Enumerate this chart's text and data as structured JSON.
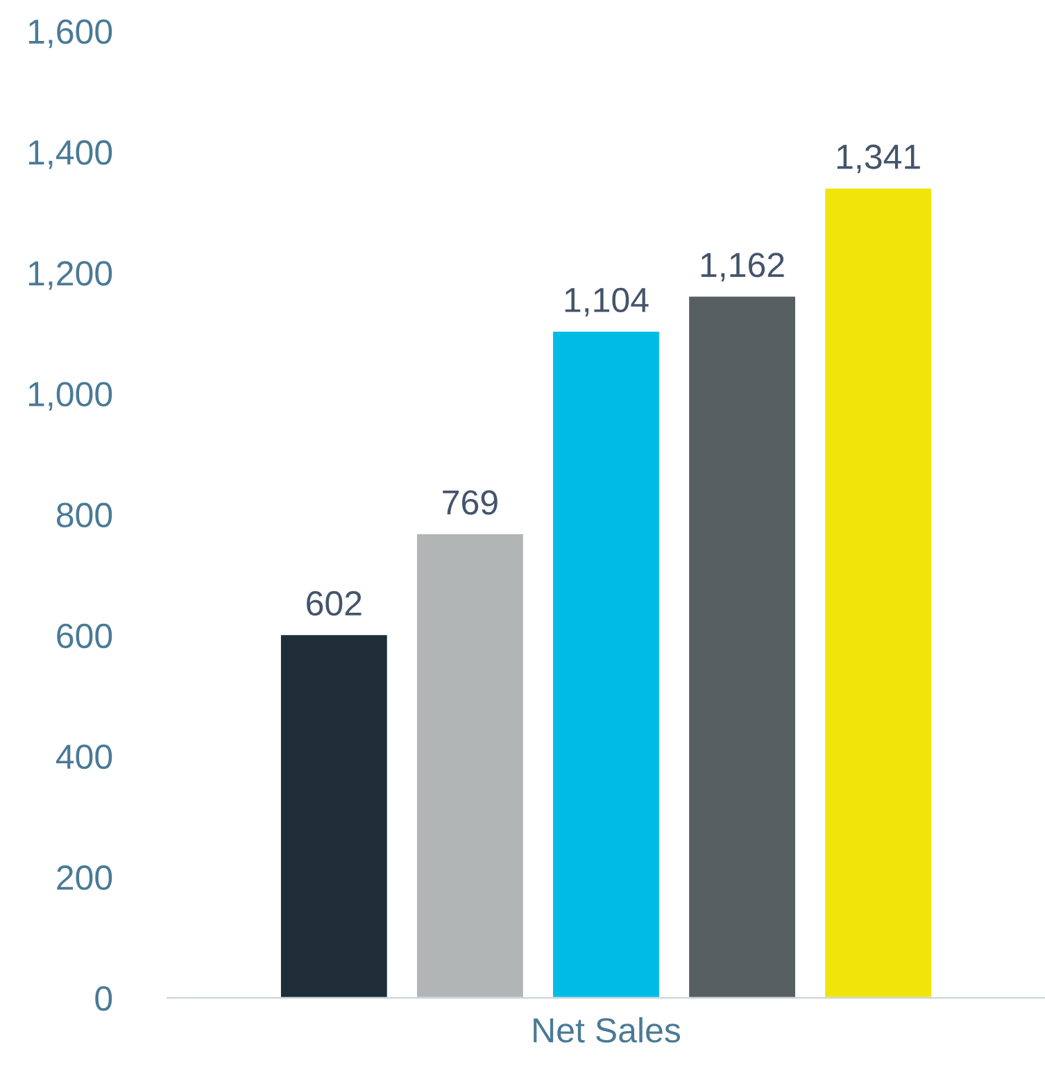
{
  "chart_data": {
    "type": "bar",
    "categories": [
      "Net Sales"
    ],
    "series": [
      {
        "color": "#1e2d37",
        "values": [
          602
        ],
        "value_labels": [
          "602"
        ]
      },
      {
        "color": "#b2b5b6",
        "values": [
          769
        ],
        "value_labels": [
          "769"
        ]
      },
      {
        "color": "#00bce4",
        "values": [
          1104
        ],
        "value_labels": [
          "1,104"
        ]
      },
      {
        "color": "#575f61",
        "values": [
          1162
        ],
        "value_labels": [
          "1,162"
        ]
      },
      {
        "color": "#f1e40a",
        "values": [
          1341
        ],
        "value_labels": [
          "1,341"
        ]
      }
    ],
    "ylim": [
      0,
      1600
    ],
    "yticks": [
      0,
      200,
      400,
      600,
      800,
      {
        "value": 1000,
        "label": "1,000"
      },
      {
        "value": 1200,
        "label": "1,200"
      },
      {
        "value": 1400,
        "label": "1,400"
      },
      {
        "value": 1600,
        "label": "1,600"
      }
    ],
    "grid": false
  }
}
